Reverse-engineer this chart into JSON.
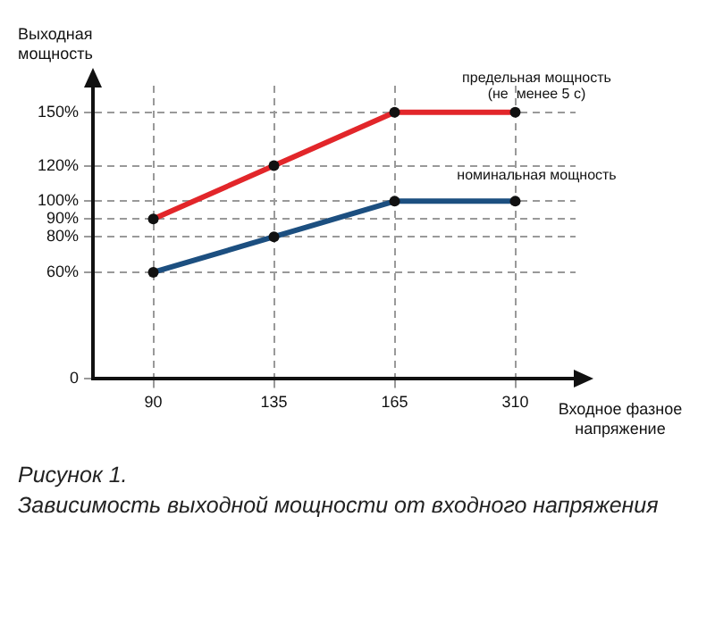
{
  "chart_data": {
    "type": "line",
    "xlabel": "Входное фазное напряжение",
    "ylabel": "Выходная мощность",
    "annotations": [
      "Рисунок 1.",
      "Зависимость выходной мощности от входного напряжения"
    ],
    "categories": [
      "90",
      "135",
      "165",
      "310"
    ],
    "series": [
      {
        "name": "предельная мощность (не  менее 5 с)",
        "color": "#e2262a",
        "values": [
          90,
          120,
          150,
          150
        ]
      },
      {
        "name": "номинальная мощность",
        "color": "#1c4f80",
        "values": [
          60,
          80,
          100,
          100
        ]
      }
    ],
    "ylim": [
      0,
      165
    ],
    "yticks": [
      {
        "value": 0,
        "label": "0"
      },
      {
        "value": 60,
        "label": "60%"
      },
      {
        "value": 80,
        "label": "80%"
      },
      {
        "value": 90,
        "label": "90%"
      },
      {
        "value": 100,
        "label": "100%"
      },
      {
        "value": 120,
        "label": "120%"
      },
      {
        "value": 150,
        "label": "150%"
      }
    ],
    "grid": true,
    "legend": false,
    "marker": "circle",
    "line_style": "solid"
  }
}
